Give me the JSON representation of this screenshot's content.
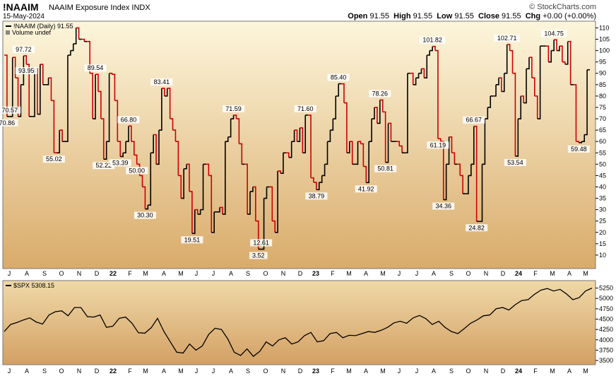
{
  "header": {
    "symbol": "!NAAIM",
    "name": "NAAIM Exposure Index",
    "exchange": "INDX",
    "date": "15-May-2024",
    "open_label": "Open",
    "open": "91.55",
    "high_label": "High",
    "high": "91.55",
    "low_label": "Low",
    "low": "91.55",
    "close_label": "Close",
    "close": "91.55",
    "chg_label": "Chg",
    "chg": "+0.00 (+0.00%)",
    "watermark": "© StockCharts.com"
  },
  "chart_data": [
    {
      "type": "line",
      "legend": [
        "!NAAIM (Daily) 91.55",
        "Volume undef"
      ],
      "ylim": [
        5,
        112
      ],
      "y_ticks": [
        10,
        15,
        20,
        25,
        30,
        35,
        40,
        45,
        50,
        55,
        60,
        65,
        70,
        75,
        80,
        85,
        90,
        95,
        100,
        105,
        110
      ],
      "x_ticks": [
        "J",
        "A",
        "S",
        "O",
        "N",
        "D",
        "22",
        "F",
        "M",
        "A",
        "M",
        "J",
        "J",
        "A",
        "S",
        "O",
        "N",
        "D",
        "23",
        "F",
        "M",
        "A",
        "M",
        "J",
        "J",
        "A",
        "S",
        "O",
        "N",
        "D",
        "24",
        "F",
        "M",
        "A",
        "M"
      ],
      "colors": {
        "up": "#000000",
        "down": "#cc0000"
      },
      "annotations": [
        "3.52",
        "97.72",
        "93.95",
        "70.86",
        "70.57",
        "55.02",
        "89.54",
        "52.22",
        "53.39",
        "66.80",
        "30.30",
        "83.41",
        "19.51",
        "50.00",
        "71.59",
        "12.61",
        "71.60",
        "38.79",
        "85.40",
        "41.92",
        "78.26",
        "50.81",
        "101.82",
        "61.19",
        "34.36",
        "66.67",
        "24.82",
        "102.71",
        "53.54",
        "104.75",
        "59.48"
      ],
      "values": [
        98,
        71,
        71,
        97,
        88,
        71,
        85,
        97.72,
        93.95,
        71,
        71,
        92,
        72,
        93.95,
        85,
        85,
        88,
        78,
        55.02,
        55,
        65,
        60,
        60,
        98,
        100,
        103,
        110,
        105,
        105,
        104,
        104,
        90,
        70,
        89.54,
        82,
        70,
        52.22,
        60,
        90,
        89.54,
        78,
        60,
        53.39,
        55,
        60,
        66.8,
        60,
        54,
        50,
        45,
        40,
        30.3,
        32,
        55,
        63,
        50,
        65,
        83.41,
        80,
        83.41,
        70,
        65,
        60,
        45,
        35,
        48,
        50,
        38,
        19.51,
        30,
        28,
        30,
        50,
        50,
        45,
        20,
        29,
        29,
        31,
        28,
        60,
        62,
        70,
        71.59,
        70,
        59,
        50,
        50,
        28,
        38,
        40,
        25,
        12.61,
        12.61,
        35,
        40,
        40,
        25,
        20,
        47,
        46,
        55,
        55,
        53,
        60,
        65,
        60,
        66,
        55,
        71.6,
        71.6,
        44,
        42,
        38.79,
        42,
        45,
        50,
        60,
        65,
        70,
        80,
        85.4,
        85.4,
        77,
        55,
        60,
        50,
        50,
        60,
        59,
        49,
        41.92,
        60,
        70,
        75,
        68,
        78.26,
        73,
        50.81,
        68,
        60,
        60,
        60,
        58,
        55,
        55,
        90,
        90,
        85,
        88,
        90,
        92,
        88,
        98,
        100,
        101.82,
        100,
        61.19,
        60,
        34.36,
        50,
        62,
        55,
        50,
        50,
        45,
        37,
        37,
        45,
        50,
        66.67,
        24.82,
        24.82,
        50,
        70,
        75,
        80,
        80,
        85,
        88,
        82,
        90,
        102.71,
        100,
        90,
        53.54,
        70,
        80,
        77,
        92,
        97,
        88,
        80,
        70,
        102,
        102,
        102,
        95,
        100,
        104.75,
        100,
        102,
        95,
        94,
        104,
        85,
        85,
        60,
        59.48,
        60,
        63,
        91.55,
        91.55
      ]
    },
    {
      "type": "line",
      "legend": [
        "$SPX 5308.15"
      ],
      "ylim": [
        3450,
        5380
      ],
      "y_ticks": [
        3500,
        3750,
        4000,
        4250,
        4500,
        4750,
        5000,
        5250
      ],
      "x_ticks": [
        "J",
        "A",
        "S",
        "O",
        "N",
        "D",
        "22",
        "F",
        "M",
        "A",
        "M",
        "J",
        "J",
        "A",
        "S",
        "O",
        "N",
        "D",
        "23",
        "F",
        "M",
        "A",
        "M",
        "J",
        "J",
        "A",
        "S",
        "O",
        "N",
        "D",
        "24",
        "F",
        "M",
        "A",
        "M"
      ],
      "series_color": "#000000",
      "values": [
        4200,
        4370,
        4420,
        4480,
        4530,
        4430,
        4380,
        4600,
        4680,
        4700,
        4580,
        4780,
        4780,
        4560,
        4550,
        4600,
        4300,
        4330,
        4520,
        4550,
        4400,
        4170,
        4160,
        4290,
        4520,
        4200,
        3950,
        3700,
        3680,
        3900,
        3750,
        3850,
        4130,
        4280,
        4250,
        4020,
        3700,
        3620,
        3780,
        3600,
        3720,
        3950,
        3850,
        4000,
        4050,
        3900,
        3950,
        4100,
        4180,
        3950,
        3980,
        4150,
        4180,
        4050,
        4110,
        4100,
        4150,
        4200,
        4180,
        4230,
        4300,
        4410,
        4450,
        4400,
        4530,
        4590,
        4510,
        4370,
        4450,
        4300,
        4200,
        4150,
        4270,
        4400,
        4480,
        4580,
        4600,
        4750,
        4780,
        4720,
        4850,
        4950,
        4970,
        5100,
        5200,
        5240,
        5180,
        5220,
        5110,
        4970,
        5020,
        5180,
        5250
      ]
    }
  ]
}
